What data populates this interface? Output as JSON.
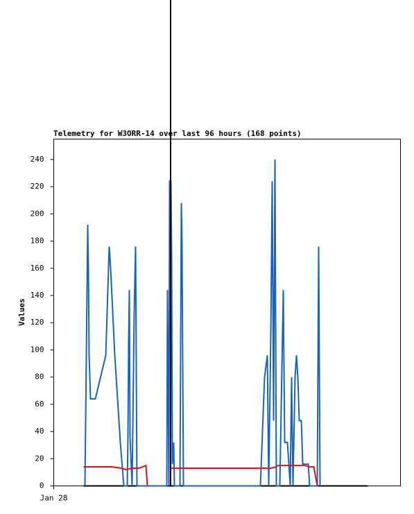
{
  "chart_data": {
    "type": "line",
    "title": "Telemetry for W3ORR-14 over last 96 hours (168 points)",
    "y_label": "Values",
    "xlim": [
      0,
      100
    ],
    "xticks": [
      {
        "value": 0,
        "label": "Jan 28"
      }
    ],
    "ylim": [
      0,
      255
    ],
    "yticks": [
      0,
      20,
      40,
      60,
      80,
      100,
      120,
      140,
      160,
      180,
      200,
      220,
      240
    ],
    "grid": false,
    "series": [
      {
        "color": "#000000",
        "x": [
          8.6,
          90.6
        ],
        "values": [
          0,
          0
        ]
      },
      {
        "color": "#1565c0",
        "x": [
          9,
          9.4,
          9.8,
          10,
          10.2,
          10.6,
          12,
          15,
          16,
          16.4,
          17.6,
          19.2,
          20.2,
          21.2,
          21.4,
          21.6,
          21.8,
          22,
          22.6,
          23.2,
          23.6,
          24,
          32.6,
          32.8,
          33,
          33.2,
          33.4,
          33.8,
          34,
          34.2,
          34.6,
          34.8,
          36.4,
          36.8,
          37,
          37.2,
          37.4,
          59.6,
          60.8,
          61.6,
          62,
          62.6,
          63,
          63.4,
          63.8,
          64.2,
          65.2,
          66.2,
          66.6,
          67.4,
          68.2,
          68.6,
          69,
          69.6,
          70,
          70.4,
          70.8,
          71.4,
          71.8,
          73.4,
          73.8,
          76,
          76.2,
          76.4,
          76.6,
          76.8
        ],
        "values": [
          0,
          96,
          192,
          160,
          96,
          64,
          64,
          96,
          176,
          160,
          96,
          32,
          0,
          0,
          36,
          108,
          144,
          36,
          0,
          128,
          176,
          0,
          0,
          144,
          72,
          0,
          224,
          224,
          168,
          16,
          32,
          0,
          0,
          208,
          176,
          88,
          0,
          0,
          80,
          96,
          0,
          112,
          224,
          48,
          240,
          0,
          0,
          144,
          32,
          32,
          0,
          80,
          0,
          80,
          96,
          80,
          48,
          48,
          16,
          16,
          0,
          0,
          88,
          176,
          88,
          0
        ]
      },
      {
        "color": "#e01010",
        "x": [
          8.6,
          16.6,
          19.6,
          20.6,
          22.6,
          24.6,
          25.6,
          26.6,
          27,
          28,
          33.8,
          61.6,
          62.6,
          64.2,
          64.6,
          72.6,
          73.6,
          75,
          76
        ],
        "values": [
          14,
          14,
          13,
          12,
          13,
          13,
          14,
          15,
          0,
          null,
          13,
          13,
          13,
          14,
          15,
          15,
          14,
          14,
          0
        ]
      }
    ]
  }
}
